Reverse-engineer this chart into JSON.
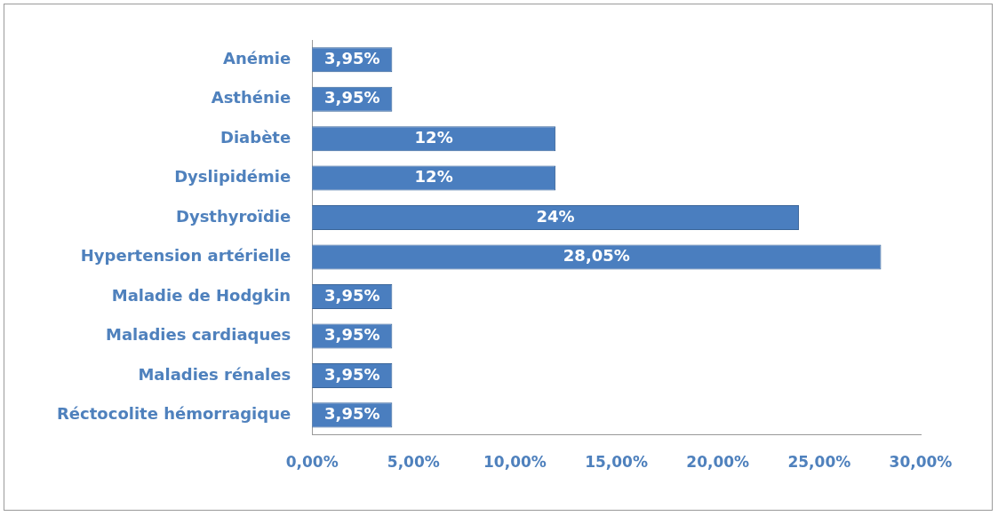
{
  "chart_data": {
    "type": "bar",
    "orientation": "horizontal",
    "categories": [
      "Anémie",
      "Asthénie",
      "Diabète",
      "Dyslipidémie",
      "Dysthyroïdie",
      "Hypertension artérielle",
      "Maladie de Hodgkin",
      "Maladies cardiaques",
      "Maladies rénales",
      "Réctocolite hémorragique"
    ],
    "values": [
      3.95,
      3.95,
      12,
      12,
      24,
      28.05,
      3.95,
      3.95,
      3.95,
      3.95
    ],
    "value_labels": [
      "3,95%",
      "3,95%",
      "12%",
      "12%",
      "24%",
      "28,05%",
      "3,95%",
      "3,95%",
      "3,95%",
      "3,95%"
    ],
    "color": "#4a7ebf",
    "xlim": [
      0,
      30
    ],
    "xticks": [
      {
        "value": 0,
        "label": "0,00%"
      },
      {
        "value": 5,
        "label": "5,00%"
      },
      {
        "value": 10,
        "label": "10,00%"
      },
      {
        "value": 15,
        "label": "15,00%"
      },
      {
        "value": 20,
        "label": "20,00%"
      },
      {
        "value": 25,
        "label": "25,00%"
      },
      {
        "value": 30,
        "label": "30,00%"
      }
    ],
    "grid": false,
    "legend": false
  }
}
